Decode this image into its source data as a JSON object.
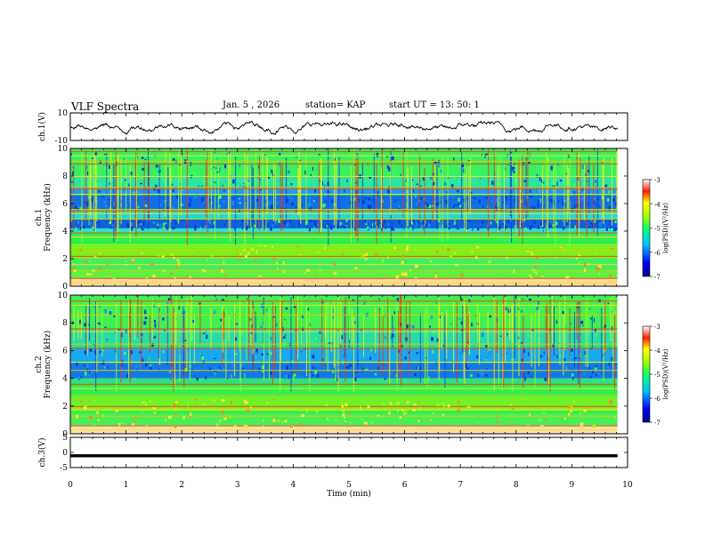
{
  "header": {
    "title": "VLF Spectra",
    "date": "Jan. 5 , 2026",
    "station": "station= KAP",
    "start": "start UT =  13: 50: 1"
  },
  "chart_data": [
    {
      "type": "line",
      "title": "ch.1(V)",
      "ylabel": "ch.1(V)",
      "ylim": [
        -10,
        10
      ],
      "y_ticks": [
        "10",
        "-10"
      ],
      "xlim": [
        0,
        10
      ],
      "description_values": "noisy waveform oscillating roughly between -5 and 5 V"
    },
    {
      "type": "heatmap",
      "ylabel_top": "ch.1",
      "ylabel": "Frequency (kHz)",
      "ylim": [
        0,
        10
      ],
      "y_ticks": [
        "0",
        "2",
        "4",
        "6",
        "8",
        "10"
      ],
      "xlim": [
        0,
        10
      ],
      "colorbar": {
        "label": "log(PSD)(V²/Hz)",
        "range": [
          -7,
          -3
        ],
        "ticks": [
          "-3",
          "-4",
          "-5",
          "-6",
          "-7"
        ]
      }
    },
    {
      "type": "heatmap",
      "ylabel_top": "ch.2",
      "ylabel": "Frequency (kHz)",
      "ylim": [
        0,
        10
      ],
      "y_ticks": [
        "0",
        "2",
        "4",
        "6",
        "8",
        "10"
      ],
      "xlim": [
        0,
        10
      ],
      "colorbar": {
        "label": "log(PSD)(V²/Hz)",
        "range": [
          -7,
          -3
        ],
        "ticks": [
          "-3",
          "-4",
          "-5",
          "-6",
          "-7"
        ]
      }
    },
    {
      "type": "line",
      "ylabel": "ch.3(V)",
      "ylim": [
        -5,
        5
      ],
      "y_ticks": [
        "5",
        "0",
        "-5"
      ],
      "xlim": [
        0,
        10
      ],
      "x_ticks": [
        "0",
        "1",
        "2",
        "3",
        "4",
        "5",
        "6",
        "7",
        "8",
        "9",
        "10"
      ],
      "xlabel": "Time (min)",
      "values_note": "flat thick trace at approximately -1 V"
    }
  ]
}
